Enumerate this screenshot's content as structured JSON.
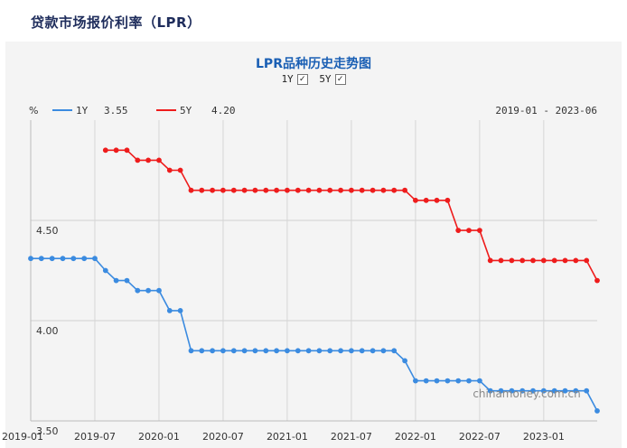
{
  "page": {
    "title": "贷款市场报价利率（LPR）"
  },
  "controls": {
    "toggle_1y": {
      "label": "1Y",
      "checked": true
    },
    "toggle_5y": {
      "label": "5Y",
      "checked": true
    }
  },
  "chart_data": {
    "type": "line",
    "title": "LPR品种历史走势图",
    "ylabel": "%",
    "ylim": [
      3.5,
      5.0
    ],
    "yticks": [
      "4.50",
      "4.00",
      "3.50"
    ],
    "xticks": [
      "2019-01",
      "2019-07",
      "2020-01",
      "2020-07",
      "2021-01",
      "2021-07",
      "2022-01",
      "2022-07",
      "2023-01"
    ],
    "date_range": "2019-01 - 2023-06",
    "watermark": "chinamoney.com.cn",
    "series": [
      {
        "name": "1Y",
        "color": "#3b8be0",
        "latest": "3.55",
        "x": [
          "2019-01",
          "2019-02",
          "2019-03",
          "2019-04",
          "2019-05",
          "2019-06",
          "2019-07",
          "2019-08",
          "2019-09",
          "2019-10",
          "2019-11",
          "2019-12",
          "2020-01",
          "2020-02",
          "2020-03",
          "2020-04",
          "2020-05",
          "2020-06",
          "2020-07",
          "2020-08",
          "2020-09",
          "2020-10",
          "2020-11",
          "2020-12",
          "2021-01",
          "2021-02",
          "2021-03",
          "2021-04",
          "2021-05",
          "2021-06",
          "2021-07",
          "2021-08",
          "2021-09",
          "2021-10",
          "2021-11",
          "2021-12",
          "2022-01",
          "2022-02",
          "2022-03",
          "2022-04",
          "2022-05",
          "2022-06",
          "2022-07",
          "2022-08",
          "2022-09",
          "2022-10",
          "2022-11",
          "2022-12",
          "2023-01",
          "2023-02",
          "2023-03",
          "2023-04",
          "2023-05",
          "2023-06"
        ],
        "values": [
          4.31,
          4.31,
          4.31,
          4.31,
          4.31,
          4.31,
          4.31,
          4.25,
          4.2,
          4.2,
          4.15,
          4.15,
          4.15,
          4.05,
          4.05,
          3.85,
          3.85,
          3.85,
          3.85,
          3.85,
          3.85,
          3.85,
          3.85,
          3.85,
          3.85,
          3.85,
          3.85,
          3.85,
          3.85,
          3.85,
          3.85,
          3.85,
          3.85,
          3.85,
          3.85,
          3.8,
          3.7,
          3.7,
          3.7,
          3.7,
          3.7,
          3.7,
          3.7,
          3.65,
          3.65,
          3.65,
          3.65,
          3.65,
          3.65,
          3.65,
          3.65,
          3.65,
          3.65,
          3.55
        ]
      },
      {
        "name": "5Y",
        "color": "#ee1c1c",
        "latest": "4.20",
        "x": [
          "2019-08",
          "2019-09",
          "2019-10",
          "2019-11",
          "2019-12",
          "2020-01",
          "2020-02",
          "2020-03",
          "2020-04",
          "2020-05",
          "2020-06",
          "2020-07",
          "2020-08",
          "2020-09",
          "2020-10",
          "2020-11",
          "2020-12",
          "2021-01",
          "2021-02",
          "2021-03",
          "2021-04",
          "2021-05",
          "2021-06",
          "2021-07",
          "2021-08",
          "2021-09",
          "2021-10",
          "2021-11",
          "2021-12",
          "2022-01",
          "2022-02",
          "2022-03",
          "2022-04",
          "2022-05",
          "2022-06",
          "2022-07",
          "2022-08",
          "2022-09",
          "2022-10",
          "2022-11",
          "2022-12",
          "2023-01",
          "2023-02",
          "2023-03",
          "2023-04",
          "2023-05",
          "2023-06"
        ],
        "values": [
          4.85,
          4.85,
          4.85,
          4.8,
          4.8,
          4.8,
          4.75,
          4.75,
          4.65,
          4.65,
          4.65,
          4.65,
          4.65,
          4.65,
          4.65,
          4.65,
          4.65,
          4.65,
          4.65,
          4.65,
          4.65,
          4.65,
          4.65,
          4.65,
          4.65,
          4.65,
          4.65,
          4.65,
          4.65,
          4.6,
          4.6,
          4.6,
          4.6,
          4.45,
          4.45,
          4.45,
          4.3,
          4.3,
          4.3,
          4.3,
          4.3,
          4.3,
          4.3,
          4.3,
          4.3,
          4.3,
          4.2
        ]
      }
    ]
  }
}
